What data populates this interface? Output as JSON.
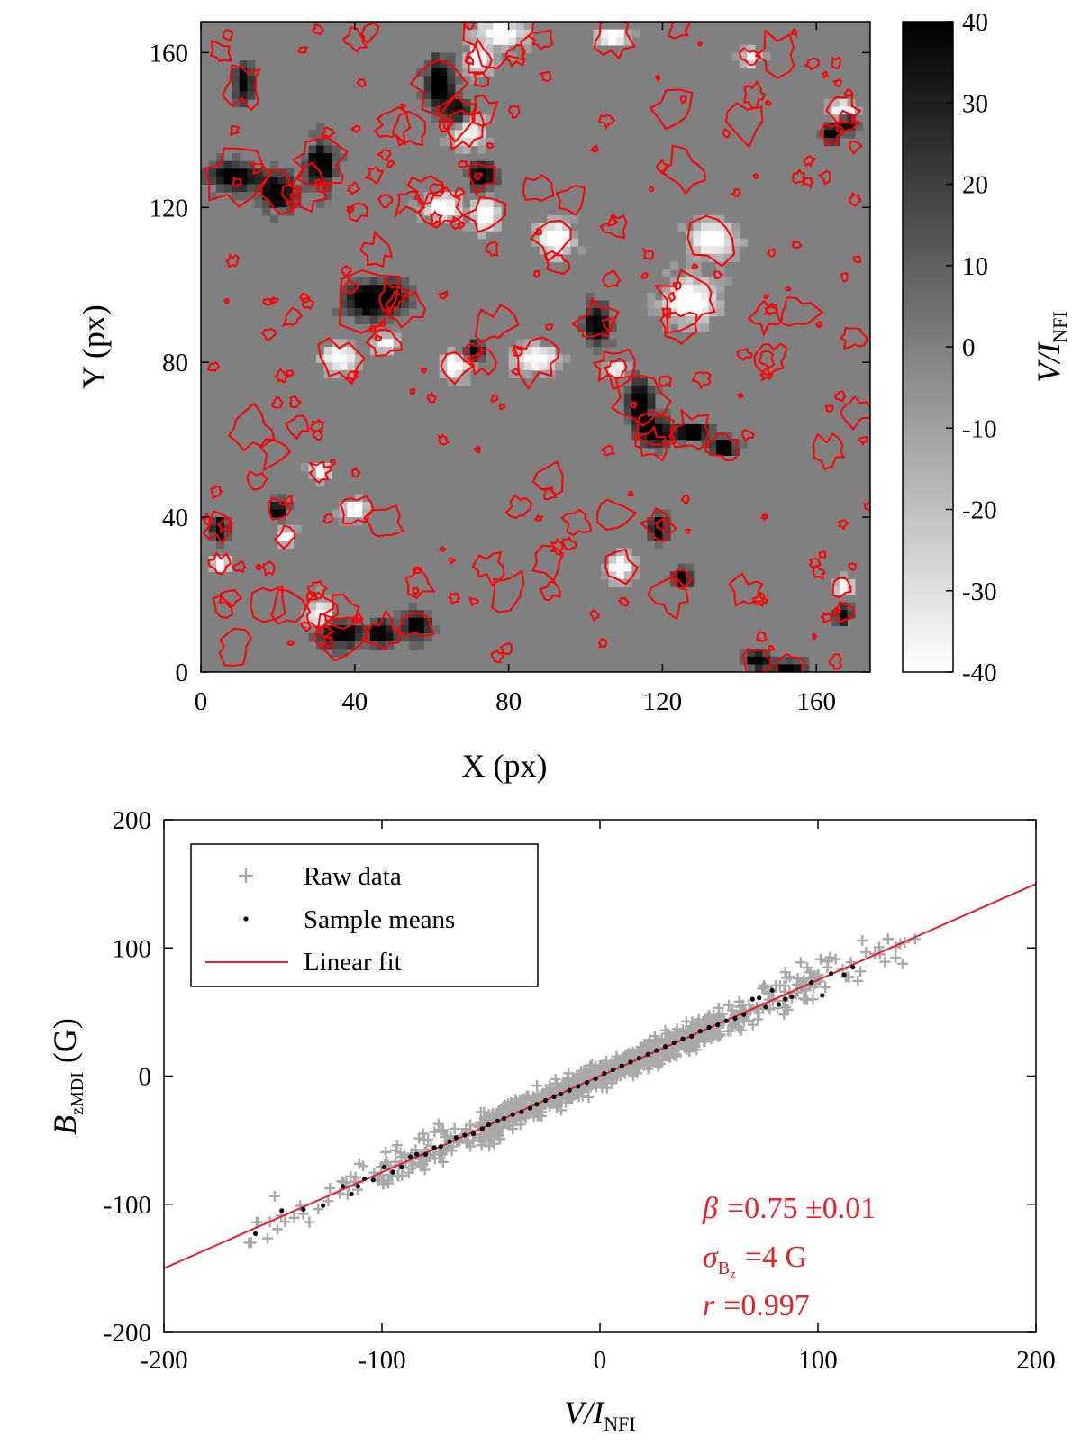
{
  "chart_data": [
    {
      "type": "heatmap",
      "title": "",
      "xlabel": "X (px)",
      "ylabel": "Y (px)",
      "xlim": [
        0,
        174
      ],
      "ylim": [
        0,
        168
      ],
      "xticks": [
        "0",
        "40",
        "80",
        "120",
        "160"
      ],
      "yticks": [
        "0",
        "40",
        "80",
        "120",
        "160"
      ],
      "grid": false,
      "colormap": "gray (black = +40, white = -40)",
      "contour_color": "#ff0000",
      "colorbar": {
        "label_main": "V/I",
        "label_sub": "NFI",
        "range": [
          -40,
          40
        ],
        "ticks": [
          "40",
          "30",
          "20",
          "10",
          "0",
          "-10",
          "-20",
          "-30",
          "-40"
        ]
      }
    },
    {
      "type": "scatter",
      "title": "",
      "xlabel_main": "V/I",
      "xlabel_sub": "NFI",
      "ylabel_main": "B",
      "ylabel_sub": "zMDI",
      "ylabel_unit": "(G)",
      "xlim": [
        -200,
        200
      ],
      "ylim": [
        -200,
        200
      ],
      "xticks": [
        "-200",
        "-100",
        "0",
        "100",
        "200"
      ],
      "yticks": [
        "200",
        "100",
        "0",
        "-100",
        "-200"
      ],
      "grid": false,
      "legend_position": "top-left",
      "legend": [
        "Raw data",
        "Sample means",
        "Linear fit"
      ],
      "fit": {
        "slope": 0.75,
        "intercept": 0,
        "color": "#e8202a"
      },
      "sample_means": {
        "x": [
          -158,
          -146,
          -136,
          -127,
          -118,
          -114,
          -111,
          -108,
          -104,
          -99,
          -95,
          -91,
          -87,
          -84,
          -80,
          -76,
          -73,
          -69,
          -66,
          -62,
          -58,
          -54,
          -51,
          -47,
          -44,
          -40,
          -36,
          -32,
          -29,
          -25,
          -21,
          -18,
          -14,
          -10,
          -6,
          -2,
          2,
          6,
          10,
          14,
          18,
          22,
          26,
          30,
          34,
          38,
          42,
          46,
          50,
          54,
          58,
          62,
          66,
          70,
          73,
          76,
          79,
          82,
          85,
          88,
          97,
          102,
          106,
          112,
          116
        ],
        "y": [
          -123,
          -105,
          -104,
          -101,
          -86,
          -92,
          -86,
          -80,
          -81,
          -71,
          -75,
          -71,
          -63,
          -61,
          -61,
          -56,
          -55,
          -51,
          -48,
          -46,
          -45,
          -41,
          -38,
          -35,
          -33,
          -30,
          -28,
          -25,
          -22,
          -19,
          -16,
          -14,
          -11,
          -8,
          -5,
          -2,
          2,
          5,
          8,
          11,
          14,
          17,
          20,
          23,
          26,
          29,
          31,
          35,
          38,
          40,
          43,
          45,
          48,
          60,
          61,
          54,
          67,
          56,
          60,
          62,
          73,
          63,
          80,
          79,
          85
        ]
      },
      "raw_data_extent": {
        "x": [
          -165,
          145
        ],
        "y": [
          -130,
          107
        ]
      },
      "annotations": [
        {
          "symbol": "β",
          "text": "=0.75 ±0.01"
        },
        {
          "symbol": "σ",
          "sub": "B",
          "sub2": "z",
          "text": "=4 G"
        },
        {
          "symbol": "r",
          "text": "=0.997"
        }
      ]
    }
  ]
}
